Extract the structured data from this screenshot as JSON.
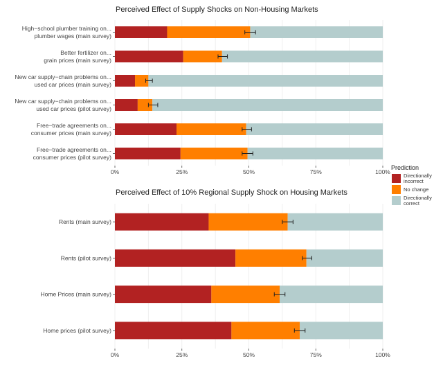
{
  "chart_data": [
    {
      "type": "bar",
      "orientation": "horizontal",
      "stacked": true,
      "title": "Perceived Effect of Supply Shocks on Non-Housing Markets",
      "categories": [
        [
          "High−school plumber training on...",
          "plumber wages (main survey)"
        ],
        [
          "Better fertilizer on...",
          "grain prices (main survey)"
        ],
        [
          "New car supply−chain problems on...",
          "used car prices (main survey)"
        ],
        [
          "New car supply−chain problems on...",
          "used car prices (pilot survey)"
        ],
        [
          "Free−trade agreements on...",
          "consumer prices (main survey)"
        ],
        [
          "Free−trade agreements on...",
          "consumer prices (pilot survey)"
        ]
      ],
      "series": [
        {
          "name": "Directionally incorrect",
          "values": [
            19.5,
            25.5,
            7.5,
            8.5,
            23,
            24.5
          ]
        },
        {
          "name": "No change",
          "values": [
            31,
            14.5,
            5,
            5.5,
            26,
            25
          ]
        },
        {
          "name": "Directionally correct",
          "values": [
            49.5,
            60,
            87.5,
            86,
            51,
            50.5
          ]
        }
      ],
      "error_bars": [
        [
          48.5,
          52.5
        ],
        [
          38.5,
          42
        ],
        [
          11.5,
          14
        ],
        [
          12.5,
          16
        ],
        [
          47.5,
          51
        ],
        [
          47.5,
          51.5
        ]
      ],
      "xlim": [
        0,
        100
      ],
      "xticks": [
        "0%",
        "25%",
        "50%",
        "75%",
        "100%"
      ],
      "xlabel": "",
      "ylabel": ""
    },
    {
      "type": "bar",
      "orientation": "horizontal",
      "stacked": true,
      "title": "Perceived Effect of 10% Regional Supply Shock on Housing Markets",
      "categories": [
        [
          "Rents (main survey)"
        ],
        [
          "Rents (pilot survey)"
        ],
        [
          "Home Prices (main survey)"
        ],
        [
          "Home prices (pilot survey)"
        ]
      ],
      "series": [
        {
          "name": "Directionally incorrect",
          "values": [
            35,
            45,
            36,
            43.5
          ]
        },
        {
          "name": "No change",
          "values": [
            29.5,
            26.5,
            25.5,
            25.5
          ]
        },
        {
          "name": "Directionally correct",
          "values": [
            35.5,
            28.5,
            38.5,
            31
          ]
        }
      ],
      "error_bars": [
        [
          62.5,
          66.5
        ],
        [
          70,
          73.5
        ],
        [
          59.5,
          63.5
        ],
        [
          67,
          71
        ]
      ],
      "xlim": [
        0,
        100
      ],
      "xticks": [
        "0%",
        "25%",
        "50%",
        "75%",
        "100%"
      ],
      "xlabel": "",
      "ylabel": ""
    }
  ],
  "legend": {
    "title": "Prediction",
    "items": [
      {
        "label": [
          "Directionally",
          "incorrect"
        ],
        "color": "#b22222"
      },
      {
        "label": [
          "No change"
        ],
        "color": "#ff7f00"
      },
      {
        "label": [
          "Directionally",
          "correct"
        ],
        "color": "#b4cdcd"
      }
    ],
    "placement": "right"
  },
  "colors": [
    "#b22222",
    "#ff7f00",
    "#b4cdcd"
  ]
}
